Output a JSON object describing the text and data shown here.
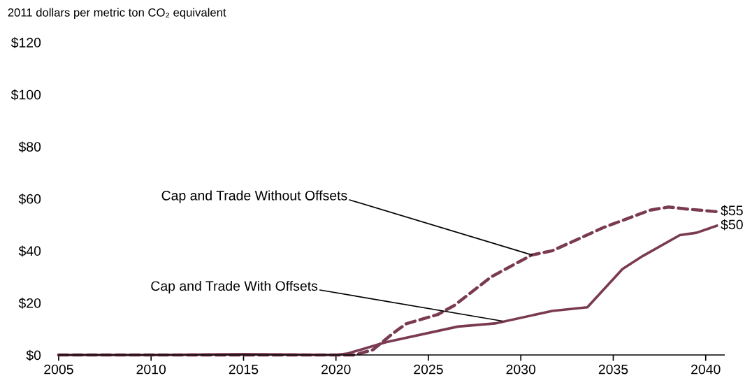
{
  "chart_data": {
    "type": "line",
    "ylabel": "2011 dollars per metric ton CO₂ equivalent",
    "xlim": [
      2005,
      2041
    ],
    "xticks": [
      2005,
      2010,
      2015,
      2020,
      2025,
      2030,
      2035,
      2040
    ],
    "ylim": [
      0,
      120
    ],
    "yticks": [
      {
        "value": 0,
        "label": "$0"
      },
      {
        "value": 20,
        "label": "$20"
      },
      {
        "value": 40,
        "label": "$40"
      },
      {
        "value": 60,
        "label": "$60"
      },
      {
        "value": 80,
        "label": "$80"
      },
      {
        "value": 100,
        "label": "$100"
      },
      {
        "value": 120,
        "label": "$120"
      }
    ],
    "grid": false,
    "legend": false,
    "marker": "none",
    "series": [
      {
        "color": "#7a3a52",
        "line_style": "dashed",
        "x": [
          2005,
          2010,
          2015,
          2020,
          2021,
          2022,
          2023.1,
          2023.8,
          2025.5,
          2026.4,
          2028.4,
          2030.6,
          2031.7,
          2034.5,
          2037,
          2038,
          2039,
          2040.6
        ],
        "values": [
          0,
          0,
          0,
          0,
          0,
          2,
          8.4,
          12,
          15.5,
          19,
          30,
          38.4,
          40,
          49,
          55.6,
          56.8,
          56,
          55
        ],
        "value_labels": [
          null,
          null,
          null,
          null,
          null,
          null,
          null,
          null,
          null,
          null,
          null,
          null,
          null,
          null,
          null,
          null,
          null,
          "$55"
        ]
      },
      {
        "color": "#7a3a52",
        "line_style": "solid",
        "x": [
          2005,
          2010,
          2015,
          2020,
          2020.6,
          2022.7,
          2026.6,
          2028.6,
          2031.7,
          2033.6,
          2035.5,
          2036.6,
          2038.6,
          2039.5,
          2040.6
        ],
        "values": [
          0,
          0,
          0.3,
          0,
          0.5,
          4.9,
          10.9,
          12.1,
          16.9,
          18.3,
          33,
          38,
          46,
          46.9,
          49.6
        ],
        "value_labels": [
          null,
          null,
          null,
          null,
          null,
          null,
          null,
          null,
          null,
          null,
          null,
          null,
          null,
          null,
          "$50"
        ]
      }
    ],
    "annotations": [
      {
        "text": "Cap and Trade Without Offsets",
        "x": 2030.6,
        "y": 38.4
      },
      {
        "text": "Cap and Trade With Offsets",
        "x": 2029,
        "y": 13
      }
    ]
  }
}
